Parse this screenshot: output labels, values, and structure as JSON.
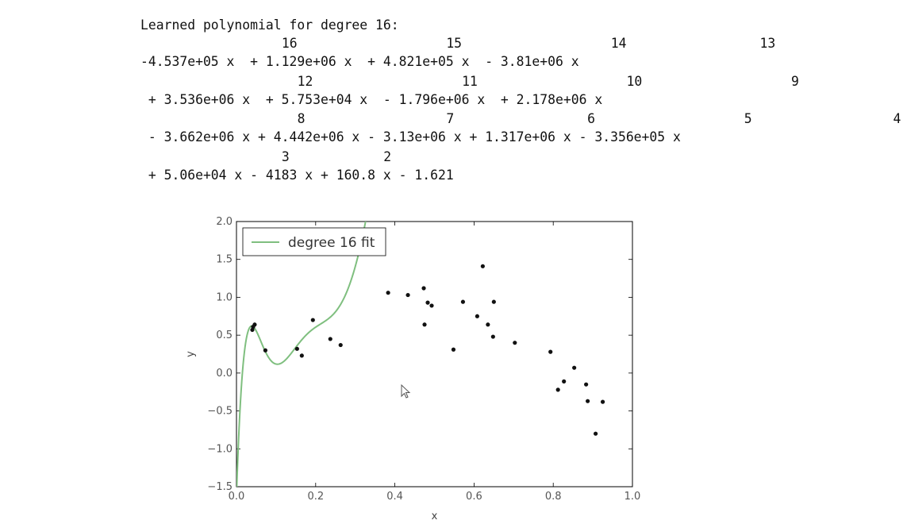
{
  "output": {
    "title": "Learned polynomial for degree 16:",
    "polynomial_lines": [
      {
        "exponents": [
          {
            "text": "16",
            "col": 18
          },
          {
            "text": "15",
            "col": 39
          },
          {
            "text": "14",
            "col": 60
          },
          {
            "text": "13",
            "col": 79
          }
        ],
        "terms": "-4.537e+05 x  + 1.129e+06 x  + 4.821e+05 x  - 3.81e+06 x"
      },
      {
        "exponents": [
          {
            "text": "12",
            "col": 20
          },
          {
            "text": "11",
            "col": 41
          },
          {
            "text": "10",
            "col": 62
          },
          {
            "text": "9",
            "col": 83
          }
        ],
        "terms": " + 3.536e+06 x  + 5.753e+04 x  - 1.796e+06 x  + 2.178e+06 x"
      },
      {
        "exponents": [
          {
            "text": "8",
            "col": 20
          },
          {
            "text": "7",
            "col": 39
          },
          {
            "text": "6",
            "col": 57
          },
          {
            "text": "5",
            "col": 77
          },
          {
            "text": "4",
            "col": 96
          }
        ],
        "terms": " - 3.662e+06 x + 4.442e+06 x - 3.13e+06 x + 1.317e+06 x - 3.356e+05 x"
      },
      {
        "exponents": [
          {
            "text": "3",
            "col": 18
          },
          {
            "text": "2",
            "col": 31
          }
        ],
        "terms": " + 5.06e+04 x - 4183 x + 160.8 x - 1.621"
      }
    ]
  },
  "chart_data": {
    "type": "scatter",
    "xlabel": "x",
    "ylabel": "y",
    "xlim": [
      0.0,
      1.0
    ],
    "ylim": [
      -1.5,
      2.0
    ],
    "xticks": [
      "0.0",
      "0.2",
      "0.4",
      "0.6",
      "0.8",
      "1.0"
    ],
    "yticks": [
      "2.0",
      "1.5",
      "1.0",
      "0.5",
      "0.0",
      "−0.5",
      "−1.0",
      "−1.5"
    ],
    "grid": false,
    "legend_position": "top-left",
    "legend_label": "degree 16 fit",
    "fit_color": "#7fbf7f",
    "point_color": "#111111",
    "polynomial_coefficients_high_to_low": [
      -453700,
      1129000,
      482100,
      -3810000,
      3536000,
      57530,
      -1796000,
      2178000,
      -3662000,
      4442000,
      -3130000,
      1317000,
      -335600,
      50600,
      -4183,
      160.8,
      -1.621
    ],
    "points": [
      {
        "x": 0.04,
        "y": 0.57
      },
      {
        "x": 0.042,
        "y": 0.61
      },
      {
        "x": 0.046,
        "y": 0.64
      },
      {
        "x": 0.073,
        "y": 0.3
      },
      {
        "x": 0.153,
        "y": 0.32
      },
      {
        "x": 0.165,
        "y": 0.23
      },
      {
        "x": 0.193,
        "y": 0.7
      },
      {
        "x": 0.237,
        "y": 0.45
      },
      {
        "x": 0.263,
        "y": 0.37
      },
      {
        "x": 0.383,
        "y": 1.06
      },
      {
        "x": 0.433,
        "y": 1.03
      },
      {
        "x": 0.473,
        "y": 1.12
      },
      {
        "x": 0.475,
        "y": 0.64
      },
      {
        "x": 0.483,
        "y": 0.93
      },
      {
        "x": 0.493,
        "y": 0.89
      },
      {
        "x": 0.548,
        "y": 0.31
      },
      {
        "x": 0.572,
        "y": 0.94
      },
      {
        "x": 0.608,
        "y": 0.75
      },
      {
        "x": 0.622,
        "y": 1.41
      },
      {
        "x": 0.635,
        "y": 0.64
      },
      {
        "x": 0.648,
        "y": 0.48
      },
      {
        "x": 0.65,
        "y": 0.94
      },
      {
        "x": 0.703,
        "y": 0.4
      },
      {
        "x": 0.793,
        "y": 0.28
      },
      {
        "x": 0.812,
        "y": -0.22
      },
      {
        "x": 0.827,
        "y": -0.11
      },
      {
        "x": 0.853,
        "y": 0.07
      },
      {
        "x": 0.883,
        "y": -0.15
      },
      {
        "x": 0.887,
        "y": -0.37
      },
      {
        "x": 0.907,
        "y": -0.8
      },
      {
        "x": 0.925,
        "y": -0.38
      }
    ]
  }
}
